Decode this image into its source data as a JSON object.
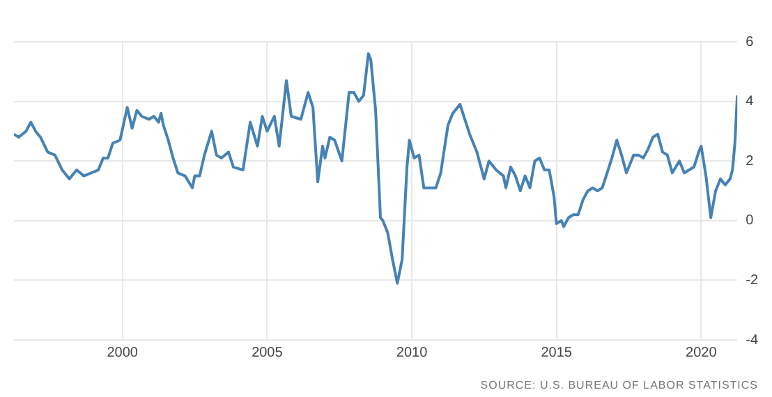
{
  "chart_data": {
    "type": "line",
    "x": [
      "1996-04",
      "1996-06",
      "1996-09",
      "1996-11",
      "1997-01",
      "1997-03",
      "1997-06",
      "1997-09",
      "1997-12",
      "1998-03",
      "1998-06",
      "1998-09",
      "1998-12",
      "1999-03",
      "1999-05",
      "1999-07",
      "1999-09",
      "1999-12",
      "2000-03",
      "2000-05",
      "2000-07",
      "2000-09",
      "2000-12",
      "2001-02",
      "2001-04",
      "2001-05",
      "2001-06",
      "2001-08",
      "2001-10",
      "2001-12",
      "2002-03",
      "2002-06",
      "2002-07",
      "2002-09",
      "2002-11",
      "2003-02",
      "2003-04",
      "2003-06",
      "2003-09",
      "2003-11",
      "2004-03",
      "2004-06",
      "2004-09",
      "2004-11",
      "2005-01",
      "2005-04",
      "2005-06",
      "2005-09",
      "2005-11",
      "2006-03",
      "2006-06",
      "2006-08",
      "2006-10",
      "2006-12",
      "2007-01",
      "2007-03",
      "2007-05",
      "2007-08",
      "2007-11",
      "2008-01",
      "2008-03",
      "2008-05",
      "2008-07",
      "2008-08",
      "2008-10",
      "2008-12",
      "2009-01",
      "2009-03",
      "2009-05",
      "2009-07",
      "2009-09",
      "2009-11",
      "2009-12",
      "2010-02",
      "2010-04",
      "2010-06",
      "2010-09",
      "2010-11",
      "2011-01",
      "2011-04",
      "2011-06",
      "2011-09",
      "2011-11",
      "2012-01",
      "2012-04",
      "2012-06",
      "2012-07",
      "2012-09",
      "2012-12",
      "2013-03",
      "2013-04",
      "2013-06",
      "2013-08",
      "2013-10",
      "2013-12",
      "2014-02",
      "2014-04",
      "2014-06",
      "2014-08",
      "2014-10",
      "2014-12",
      "2015-01",
      "2015-03",
      "2015-04",
      "2015-06",
      "2015-08",
      "2015-10",
      "2015-12",
      "2016-02",
      "2016-04",
      "2016-06",
      "2016-08",
      "2016-10",
      "2016-12",
      "2017-02",
      "2017-04",
      "2017-06",
      "2017-09",
      "2017-11",
      "2018-01",
      "2018-03",
      "2018-05",
      "2018-07",
      "2018-09",
      "2018-11",
      "2019-01",
      "2019-04",
      "2019-06",
      "2019-08",
      "2019-10",
      "2019-12",
      "2020-01",
      "2020-03",
      "2020-05",
      "2020-07",
      "2020-09",
      "2020-11",
      "2021-01",
      "2021-02",
      "2021-03",
      "2021-04"
    ],
    "series": [
      {
        "color": "#4682b4",
        "values": [
          2.9,
          2.8,
          3.0,
          3.3,
          3.0,
          2.8,
          2.3,
          2.2,
          1.7,
          1.4,
          1.7,
          1.5,
          1.6,
          1.7,
          2.1,
          2.1,
          2.6,
          2.7,
          3.8,
          3.1,
          3.7,
          3.5,
          3.4,
          3.5,
          3.3,
          3.6,
          3.2,
          2.7,
          2.1,
          1.6,
          1.5,
          1.1,
          1.5,
          1.5,
          2.2,
          3.0,
          2.2,
          2.1,
          2.3,
          1.8,
          1.7,
          3.3,
          2.5,
          3.5,
          3.0,
          3.5,
          2.5,
          4.7,
          3.5,
          3.4,
          4.3,
          3.8,
          1.3,
          2.5,
          2.1,
          2.8,
          2.7,
          2.0,
          4.3,
          4.3,
          4.0,
          4.2,
          5.6,
          5.4,
          3.7,
          0.1,
          0.0,
          -0.4,
          -1.3,
          -2.1,
          -1.3,
          1.8,
          2.7,
          2.1,
          2.2,
          1.1,
          1.1,
          1.1,
          1.6,
          3.2,
          3.6,
          3.9,
          3.4,
          2.9,
          2.3,
          1.7,
          1.4,
          2.0,
          1.7,
          1.5,
          1.1,
          1.8,
          1.5,
          1.0,
          1.5,
          1.1,
          2.0,
          2.1,
          1.7,
          1.7,
          0.8,
          -0.1,
          0.0,
          -0.2,
          0.1,
          0.2,
          0.2,
          0.7,
          1.0,
          1.1,
          1.0,
          1.1,
          1.6,
          2.1,
          2.7,
          2.2,
          1.6,
          2.2,
          2.2,
          2.1,
          2.4,
          2.8,
          2.9,
          2.3,
          2.2,
          1.6,
          2.0,
          1.6,
          1.7,
          1.8,
          2.3,
          2.5,
          1.5,
          0.1,
          1.0,
          1.4,
          1.2,
          1.4,
          1.7,
          2.6,
          4.2
        ]
      }
    ],
    "xlim": [
      "1996-04",
      "2021-04"
    ],
    "xticks": [
      "2000",
      "2005",
      "2010",
      "2015",
      "2020"
    ],
    "ylim": [
      -4,
      6
    ],
    "yticks": [
      -4,
      -2,
      0,
      2,
      4,
      6
    ],
    "grid": true,
    "legend": false,
    "marker": "none",
    "line_style": "solid",
    "annotations": [
      "SOURCE: U.S. BUREAU OF LABOR STATISTICS"
    ]
  }
}
